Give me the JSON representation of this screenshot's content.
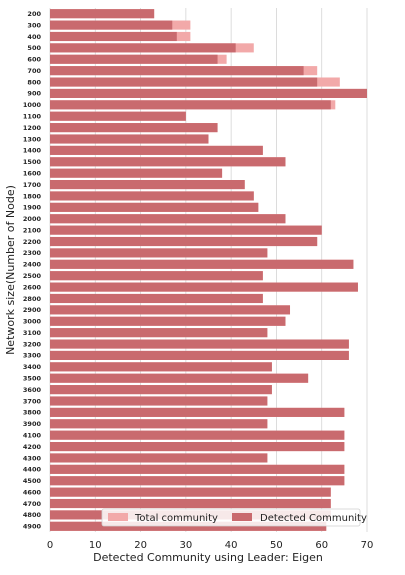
{
  "chart_data": {
    "type": "bar",
    "orientation": "horizontal",
    "title": "",
    "xlabel": "Detected Community using Leader: Eigen",
    "ylabel": "Network size(Number of Node)",
    "xlim": [
      0,
      70
    ],
    "xticks": [
      0,
      10,
      20,
      30,
      40,
      50,
      60,
      70
    ],
    "grid": "vertical",
    "legend_position": "bottom-right",
    "categories": [
      "200",
      "300",
      "400",
      "500",
      "600",
      "700",
      "800",
      "900",
      "1000",
      "1100",
      "1200",
      "1300",
      "1400",
      "1500",
      "1600",
      "1700",
      "1800",
      "1900",
      "2000",
      "2100",
      "2200",
      "2300",
      "2400",
      "2500",
      "2600",
      "2800",
      "2900",
      "3000",
      "3100",
      "3200",
      "3300",
      "3400",
      "3500",
      "3600",
      "3700",
      "3800",
      "3900",
      "4100",
      "4200",
      "4300",
      "4400",
      "4500",
      "4600",
      "4700",
      "4800",
      "4900"
    ],
    "series": [
      {
        "name": "Total community",
        "color": "#f2a9a9",
        "values": [
          23,
          31,
          31,
          45,
          39,
          59,
          64,
          70,
          63,
          30,
          37,
          35,
          47,
          52,
          38,
          43,
          45,
          46,
          52,
          60,
          59,
          48,
          67,
          47,
          68,
          47,
          53,
          52,
          48,
          66,
          66,
          49,
          57,
          49,
          48,
          65,
          48,
          65,
          65,
          48,
          65,
          65,
          62,
          62,
          62,
          61
        ]
      },
      {
        "name": "Detected Community",
        "color": "#c96a6e",
        "values": [
          23,
          27,
          28,
          41,
          37,
          56,
          59,
          70,
          62,
          30,
          37,
          35,
          47,
          52,
          38,
          43,
          45,
          46,
          52,
          60,
          59,
          48,
          67,
          47,
          68,
          47,
          53,
          52,
          48,
          66,
          66,
          49,
          57,
          49,
          48,
          65,
          48,
          65,
          65,
          48,
          65,
          65,
          62,
          62,
          62,
          61
        ]
      }
    ]
  }
}
